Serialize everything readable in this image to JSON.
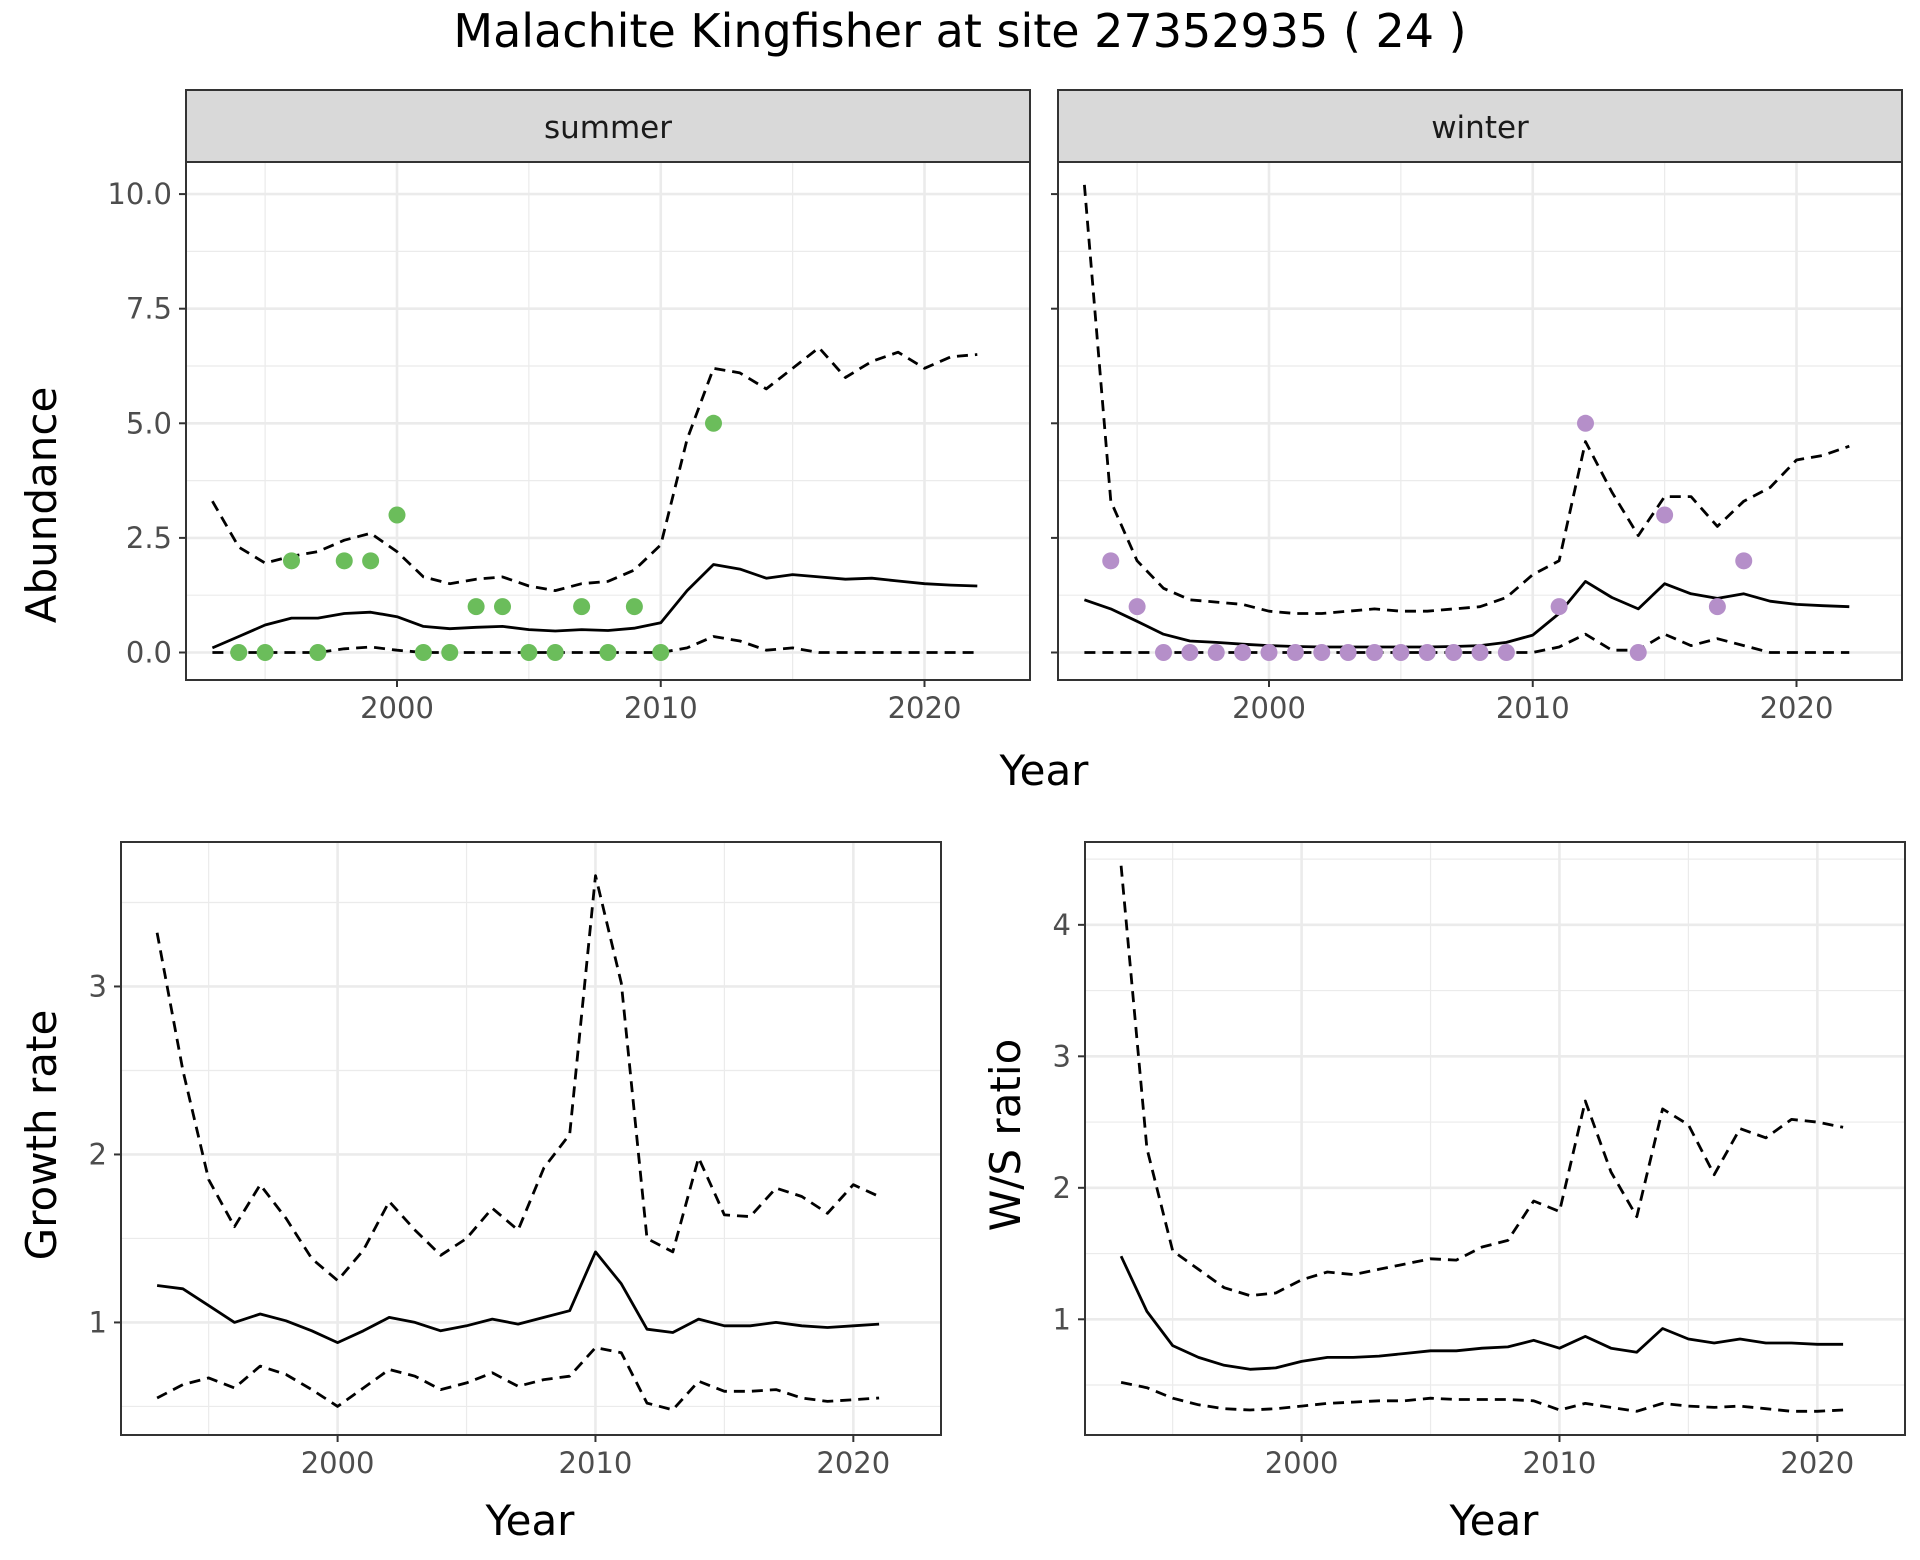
{
  "figure": {
    "title": "Malachite Kingfisher at site 27352935 ( 24 )",
    "colors": {
      "summer_points": "#6bbd5b",
      "winter_points": "#b58fc9",
      "lines": "#000000",
      "grid": "#ebebeb",
      "strip_fill": "#d9d9d9"
    }
  },
  "chart_data": [
    {
      "id": "abundance-summer",
      "type": "line",
      "panel": "summer",
      "title": "",
      "xlabel": "Year",
      "ylabel": "Abundance",
      "xlim": [
        1992,
        2024
      ],
      "ylim": [
        -0.6,
        10.7
      ],
      "x_ticks": [
        2000,
        2010,
        2020
      ],
      "y_ticks": [
        0.0,
        2.5,
        5.0,
        7.5,
        10.0
      ],
      "y_tick_labels": [
        "0.0",
        "2.5",
        "5.0",
        "7.5",
        "10.0"
      ],
      "grid": true,
      "series": [
        {
          "style": "solid",
          "x": [
            1993,
            1994,
            1995,
            1996,
            1997,
            1998,
            1999,
            2000,
            2001,
            2002,
            2003,
            2004,
            2005,
            2006,
            2007,
            2008,
            2009,
            2010,
            2011,
            2012,
            2013,
            2014,
            2015,
            2016,
            2017,
            2018,
            2019,
            2020,
            2021,
            2022
          ],
          "y": [
            0.1,
            0.35,
            0.6,
            0.75,
            0.75,
            0.85,
            0.88,
            0.78,
            0.57,
            0.52,
            0.55,
            0.57,
            0.5,
            0.47,
            0.5,
            0.48,
            0.53,
            0.65,
            1.35,
            1.92,
            1.82,
            1.62,
            1.7,
            1.65,
            1.6,
            1.62,
            1.56,
            1.5,
            1.47,
            1.45
          ]
        },
        {
          "style": "dashed",
          "x": [
            1993,
            1994,
            1995,
            1996,
            1997,
            1998,
            1999,
            2000,
            2001,
            2002,
            2003,
            2004,
            2005,
            2006,
            2007,
            2008,
            2009,
            2010,
            2011,
            2012,
            2013,
            2014,
            2015,
            2016,
            2017,
            2018,
            2019,
            2020,
            2021,
            2022
          ],
          "y": [
            3.3,
            2.3,
            1.95,
            2.1,
            2.2,
            2.45,
            2.6,
            2.2,
            1.65,
            1.5,
            1.6,
            1.65,
            1.45,
            1.35,
            1.5,
            1.55,
            1.8,
            2.35,
            4.65,
            6.2,
            6.1,
            5.75,
            6.2,
            6.65,
            6.0,
            6.35,
            6.55,
            6.2,
            6.45,
            6.5
          ]
        },
        {
          "style": "dashed",
          "x": [
            1993,
            1994,
            1995,
            1996,
            1997,
            1998,
            1999,
            2000,
            2001,
            2002,
            2003,
            2004,
            2005,
            2006,
            2007,
            2008,
            2009,
            2010,
            2011,
            2012,
            2013,
            2014,
            2015,
            2016,
            2017,
            2018,
            2019,
            2020,
            2021,
            2022
          ],
          "y": [
            0,
            0,
            0,
            0,
            0,
            0.08,
            0.12,
            0.05,
            0,
            0,
            0,
            0,
            0,
            0,
            0,
            0,
            0,
            0,
            0.1,
            0.35,
            0.25,
            0.05,
            0.1,
            0,
            0,
            0,
            0,
            0,
            0,
            0
          ]
        }
      ],
      "points": {
        "x": [
          1994,
          1995,
          1996,
          1997,
          1998,
          1999,
          2000,
          2001,
          2002,
          2003,
          2004,
          2005,
          2006,
          2007,
          2008,
          2009,
          2010,
          2012
        ],
        "y": [
          0,
          0,
          2,
          0,
          2,
          2,
          3,
          0,
          0,
          1,
          1,
          0,
          0,
          1,
          0,
          1,
          0,
          5
        ]
      }
    },
    {
      "id": "abundance-winter",
      "type": "line",
      "panel": "winter",
      "title": "",
      "xlabel": "Year",
      "ylabel": "",
      "xlim": [
        1992,
        2024
      ],
      "ylim": [
        -0.6,
        10.7
      ],
      "x_ticks": [
        2000,
        2010,
        2020
      ],
      "grid": true,
      "series": [
        {
          "style": "solid",
          "x": [
            1993,
            1994,
            1995,
            1996,
            1997,
            1998,
            1999,
            2000,
            2001,
            2002,
            2003,
            2004,
            2005,
            2006,
            2007,
            2008,
            2009,
            2010,
            2011,
            2012,
            2013,
            2014,
            2015,
            2016,
            2017,
            2018,
            2019,
            2020,
            2021,
            2022
          ],
          "y": [
            1.15,
            0.95,
            0.68,
            0.4,
            0.25,
            0.22,
            0.18,
            0.15,
            0.13,
            0.12,
            0.12,
            0.12,
            0.12,
            0.12,
            0.13,
            0.15,
            0.22,
            0.38,
            0.85,
            1.55,
            1.2,
            0.95,
            1.5,
            1.28,
            1.18,
            1.28,
            1.12,
            1.05,
            1.02,
            1.0
          ]
        },
        {
          "style": "dashed",
          "x": [
            1993,
            1994,
            1995,
            1996,
            1997,
            1998,
            1999,
            2000,
            2001,
            2002,
            2003,
            2004,
            2005,
            2006,
            2007,
            2008,
            2009,
            2010,
            2011,
            2012,
            2013,
            2014,
            2015,
            2016,
            2017,
            2018,
            2019,
            2020,
            2021,
            2022
          ],
          "y": [
            10.2,
            3.3,
            2.0,
            1.4,
            1.15,
            1.1,
            1.05,
            0.9,
            0.85,
            0.85,
            0.9,
            0.95,
            0.9,
            0.9,
            0.95,
            1.0,
            1.2,
            1.7,
            2.0,
            4.6,
            3.5,
            2.55,
            3.4,
            3.4,
            2.75,
            3.3,
            3.6,
            4.2,
            4.3,
            4.5
          ]
        },
        {
          "style": "dashed",
          "x": [
            1993,
            1994,
            1995,
            1996,
            1997,
            1998,
            1999,
            2000,
            2001,
            2002,
            2003,
            2004,
            2005,
            2006,
            2007,
            2008,
            2009,
            2010,
            2011,
            2012,
            2013,
            2014,
            2015,
            2016,
            2017,
            2018,
            2019,
            2020,
            2021,
            2022
          ],
          "y": [
            0,
            0,
            0,
            0,
            0,
            0,
            0,
            0,
            0,
            0,
            0,
            0,
            0,
            0,
            0,
            0,
            0,
            0,
            0.12,
            0.4,
            0.05,
            0.05,
            0.4,
            0.15,
            0.3,
            0.15,
            0,
            0,
            0,
            0
          ]
        }
      ],
      "points": {
        "x": [
          1994,
          1995,
          1996,
          1997,
          1998,
          1999,
          2000,
          2001,
          2002,
          2003,
          2004,
          2005,
          2006,
          2007,
          2008,
          2009,
          2011,
          2012,
          2014,
          2015,
          2017,
          2018
        ],
        "y": [
          2,
          1,
          0,
          0,
          0,
          0,
          0,
          0,
          0,
          0,
          0,
          0,
          0,
          0,
          0,
          0,
          1,
          5,
          0,
          3,
          1,
          2
        ]
      }
    },
    {
      "id": "growth-rate",
      "type": "line",
      "title": "",
      "xlabel": "Year",
      "ylabel": "Growth rate",
      "xlim": [
        1991.6,
        2023.4
      ],
      "ylim": [
        0.33,
        3.86
      ],
      "x_ticks": [
        2000,
        2010,
        2020
      ],
      "y_ticks": [
        1,
        2,
        3
      ],
      "grid": true,
      "series": [
        {
          "style": "solid",
          "x": [
            1993,
            1994,
            1995,
            1996,
            1997,
            1998,
            1999,
            2000,
            2001,
            2002,
            2003,
            2004,
            2005,
            2006,
            2007,
            2008,
            2009,
            2010,
            2011,
            2012,
            2013,
            2014,
            2015,
            2016,
            2017,
            2018,
            2019,
            2020,
            2021
          ],
          "y": [
            1.22,
            1.2,
            1.1,
            1.0,
            1.05,
            1.01,
            0.95,
            0.88,
            0.95,
            1.03,
            1.0,
            0.95,
            0.98,
            1.02,
            0.99,
            1.03,
            1.07,
            1.42,
            1.23,
            0.96,
            0.94,
            1.02,
            0.98,
            0.98,
            1.0,
            0.98,
            0.97,
            0.98,
            0.99
          ]
        },
        {
          "style": "dashed",
          "x": [
            1993,
            1994,
            1995,
            1996,
            1997,
            1998,
            1999,
            2000,
            2001,
            2002,
            2003,
            2004,
            2005,
            2006,
            2007,
            2008,
            2009,
            2010,
            2011,
            2012,
            2013,
            2014,
            2015,
            2016,
            2017,
            2018,
            2019,
            2020,
            2021
          ],
          "y": [
            3.32,
            2.5,
            1.85,
            1.57,
            1.82,
            1.62,
            1.38,
            1.25,
            1.43,
            1.72,
            1.55,
            1.4,
            1.5,
            1.68,
            1.55,
            1.92,
            2.12,
            3.66,
            3.02,
            1.5,
            1.42,
            1.98,
            1.64,
            1.63,
            1.8,
            1.75,
            1.65,
            1.82,
            1.75
          ]
        },
        {
          "style": "dashed",
          "x": [
            1993,
            1994,
            1995,
            1996,
            1997,
            1998,
            1999,
            2000,
            2001,
            2002,
            2003,
            2004,
            2005,
            2006,
            2007,
            2008,
            2009,
            2010,
            2011,
            2012,
            2013,
            2014,
            2015,
            2016,
            2017,
            2018,
            2019,
            2020,
            2021
          ],
          "y": [
            0.55,
            0.63,
            0.67,
            0.61,
            0.74,
            0.69,
            0.6,
            0.5,
            0.61,
            0.72,
            0.68,
            0.6,
            0.64,
            0.7,
            0.62,
            0.66,
            0.68,
            0.85,
            0.82,
            0.52,
            0.48,
            0.65,
            0.59,
            0.59,
            0.6,
            0.55,
            0.53,
            0.54,
            0.55
          ]
        }
      ]
    },
    {
      "id": "ws-ratio",
      "type": "line",
      "title": "",
      "xlabel": "Year",
      "ylabel": "W/S ratio",
      "xlim": [
        1991.6,
        2023.4
      ],
      "ylim": [
        0.12,
        4.63
      ],
      "x_ticks": [
        2000,
        2010,
        2020
      ],
      "y_ticks": [
        1,
        2,
        3,
        4
      ],
      "grid": true,
      "series": [
        {
          "style": "solid",
          "x": [
            1993,
            1994,
            1995,
            1996,
            1997,
            1998,
            1999,
            2000,
            2001,
            2002,
            2003,
            2004,
            2005,
            2006,
            2007,
            2008,
            2009,
            2010,
            2011,
            2012,
            2013,
            2014,
            2015,
            2016,
            2017,
            2018,
            2019,
            2020,
            2021
          ],
          "y": [
            1.48,
            1.06,
            0.8,
            0.71,
            0.65,
            0.62,
            0.63,
            0.68,
            0.71,
            0.71,
            0.72,
            0.74,
            0.76,
            0.76,
            0.78,
            0.79,
            0.84,
            0.78,
            0.87,
            0.78,
            0.75,
            0.93,
            0.85,
            0.82,
            0.85,
            0.82,
            0.82,
            0.81,
            0.81
          ]
        },
        {
          "style": "dashed",
          "x": [
            1993,
            1994,
            1995,
            1996,
            1997,
            1998,
            1999,
            2000,
            2001,
            2002,
            2003,
            2004,
            2005,
            2006,
            2007,
            2008,
            2009,
            2010,
            2011,
            2012,
            2013,
            2014,
            2015,
            2016,
            2017,
            2018,
            2019,
            2020,
            2021
          ],
          "y": [
            4.45,
            2.3,
            1.52,
            1.38,
            1.24,
            1.18,
            1.2,
            1.3,
            1.36,
            1.34,
            1.38,
            1.42,
            1.46,
            1.45,
            1.55,
            1.6,
            1.9,
            1.82,
            2.66,
            2.12,
            1.78,
            2.6,
            2.48,
            2.1,
            2.45,
            2.38,
            2.52,
            2.5,
            2.46
          ]
        },
        {
          "style": "dashed",
          "x": [
            1993,
            1994,
            1995,
            1996,
            1997,
            1998,
            1999,
            2000,
            2001,
            2002,
            2003,
            2004,
            2005,
            2006,
            2007,
            2008,
            2009,
            2010,
            2011,
            2012,
            2013,
            2014,
            2015,
            2016,
            2017,
            2018,
            2019,
            2020,
            2021
          ],
          "y": [
            0.52,
            0.48,
            0.4,
            0.35,
            0.32,
            0.31,
            0.32,
            0.34,
            0.36,
            0.37,
            0.38,
            0.38,
            0.4,
            0.39,
            0.39,
            0.39,
            0.38,
            0.31,
            0.36,
            0.33,
            0.3,
            0.36,
            0.34,
            0.33,
            0.34,
            0.32,
            0.3,
            0.3,
            0.31
          ]
        }
      ]
    }
  ]
}
